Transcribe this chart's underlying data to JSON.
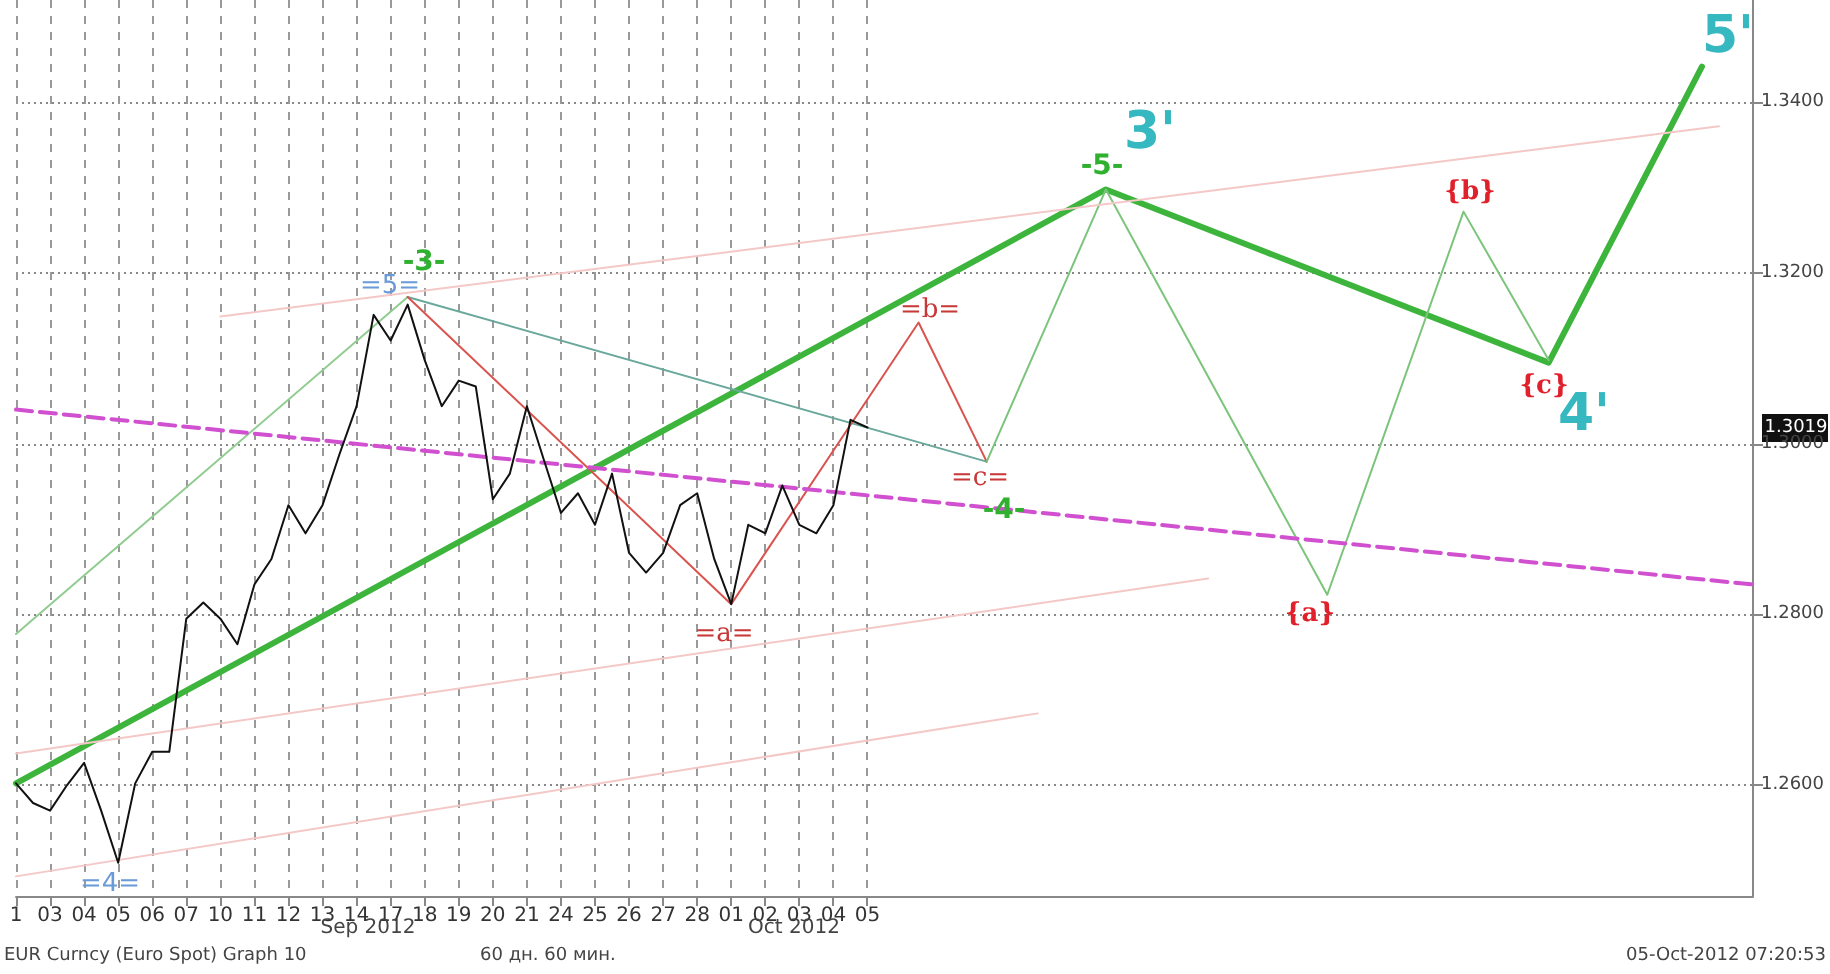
{
  "chart_data": {
    "type": "line",
    "categories": [
      "1",
      null,
      "03",
      null,
      "04",
      null,
      "05",
      null,
      "06",
      null,
      "07",
      null,
      "10",
      null,
      "11",
      null,
      "12",
      null,
      "13",
      null,
      "14",
      null,
      "17",
      null,
      "18",
      null,
      "19",
      null,
      "20",
      null,
      "21",
      null,
      "24",
      null,
      "25",
      null,
      "26",
      null,
      "27",
      null,
      "28",
      null,
      "01",
      null,
      "02",
      null,
      "03",
      null,
      "04",
      null,
      "05",
      null,
      null,
      null,
      null,
      null,
      null,
      null,
      null,
      null,
      null,
      null,
      null,
      null,
      null,
      null,
      null,
      null,
      null,
      null,
      null,
      null,
      null,
      null,
      null,
      null,
      null,
      null,
      null,
      null,
      null,
      null,
      null,
      null,
      null,
      null,
      null,
      null,
      null,
      null,
      null,
      null,
      null,
      null,
      null,
      null,
      null,
      null,
      null,
      null,
      null,
      null,
      null
    ],
    "ylim": [
      1.247,
      1.352
    ],
    "yticks": [
      {
        "value": 1.26,
        "label": "1.2600"
      },
      {
        "value": 1.28,
        "label": "1.2800"
      },
      {
        "value": 1.3,
        "label": "1.3000"
      },
      {
        "value": 1.32,
        "label": "1.3200"
      },
      {
        "value": 1.34,
        "label": "1.3400"
      }
    ],
    "grid": true,
    "marker": "none",
    "series": [
      {
        "color": "#111111",
        "values": [
          1.2602,
          1.2579,
          1.257,
          1.26,
          1.2626,
          1.257,
          1.2509,
          1.2602,
          1.2639,
          1.2639,
          1.2795,
          1.2814,
          1.2795,
          1.2765,
          1.2835,
          1.2865,
          1.2928,
          1.2895,
          1.2928,
          1.2988,
          1.3044,
          1.3151,
          1.3121,
          1.3163,
          1.3098,
          1.3044,
          1.3074,
          1.3067,
          1.2935,
          1.2965,
          1.3044,
          1.2981,
          1.2919,
          1.2942,
          1.2905,
          1.2965,
          1.2872,
          1.2849,
          1.2872,
          1.2928,
          1.2942,
          1.2865,
          1.2812,
          1.2905,
          1.2895,
          1.2951,
          1.2905,
          1.2895,
          1.2928,
          1.3028,
          1.3019,
          null,
          null,
          null,
          null,
          null,
          null,
          null,
          null,
          null,
          null,
          null,
          null,
          null,
          null,
          null,
          null,
          null,
          null,
          null,
          null,
          null,
          null,
          null,
          null,
          null,
          null,
          null,
          null,
          null,
          null,
          null,
          null,
          null,
          null,
          null,
          null,
          null,
          null,
          null,
          null,
          null,
          null,
          null,
          null,
          null,
          null,
          null,
          null,
          null,
          null,
          null,
          null
        ]
      },
      {
        "color": "#3db53d",
        "values": [
          1.2602,
          null,
          null,
          null,
          null,
          null,
          null,
          null,
          null,
          null,
          null,
          null,
          null,
          null,
          null,
          null,
          null,
          null,
          null,
          null,
          null,
          null,
          null,
          null,
          null,
          null,
          null,
          null,
          null,
          null,
          null,
          null,
          null,
          null,
          null,
          null,
          null,
          null,
          null,
          null,
          null,
          null,
          null,
          null,
          null,
          null,
          null,
          null,
          null,
          null,
          null,
          null,
          null,
          null,
          null,
          null,
          null,
          null,
          null,
          null,
          null,
          null,
          null,
          null,
          1.3298,
          null,
          null,
          null,
          null,
          null,
          null,
          null,
          null,
          null,
          null,
          null,
          null,
          null,
          null,
          null,
          null,
          null,
          null,
          null,
          null,
          null,
          null,
          null,
          null,
          null,
          1.3095,
          null,
          null,
          null,
          null,
          null,
          null,
          null,
          null,
          1.3442,
          null,
          null,
          null
        ]
      },
      {
        "color": "#90cc90",
        "values": [
          1.2777,
          null,
          null,
          null,
          null,
          null,
          null,
          null,
          null,
          null,
          null,
          null,
          null,
          null,
          null,
          null,
          null,
          null,
          null,
          null,
          null,
          null,
          null,
          1.3172,
          null,
          null,
          null,
          null,
          null,
          null,
          null,
          null,
          null,
          null,
          null,
          null,
          null,
          null,
          null,
          null,
          null,
          null,
          null,
          null,
          null,
          null,
          null,
          null,
          null,
          null,
          null,
          null,
          null,
          null,
          null,
          null,
          null,
          null,
          null,
          null,
          null,
          null,
          null,
          null,
          null,
          null,
          null,
          null,
          null,
          null,
          null,
          null,
          null,
          null,
          null,
          null,
          null,
          null,
          null,
          null,
          null,
          null,
          null,
          null,
          null,
          null,
          null,
          null,
          null,
          null,
          null,
          null,
          null,
          null,
          null,
          null,
          null,
          null,
          null,
          null,
          null,
          null,
          null
        ]
      },
      {
        "color": "#6aa89c",
        "values": [
          null,
          null,
          null,
          null,
          null,
          null,
          null,
          null,
          null,
          null,
          null,
          null,
          null,
          null,
          null,
          null,
          null,
          null,
          null,
          null,
          null,
          null,
          null,
          1.3172,
          null,
          null,
          null,
          null,
          null,
          null,
          null,
          null,
          null,
          null,
          null,
          null,
          null,
          null,
          null,
          null,
          null,
          null,
          null,
          null,
          null,
          null,
          null,
          null,
          null,
          null,
          null,
          null,
          null,
          null,
          null,
          null,
          null,
          1.2979,
          null,
          null,
          null,
          null,
          null,
          null,
          null,
          null,
          null,
          null,
          null,
          null,
          null,
          null,
          null,
          null,
          null,
          null,
          null,
          null,
          null,
          null,
          null,
          null,
          null,
          null,
          null,
          null,
          null,
          null,
          null,
          null,
          null,
          null,
          null,
          null,
          null,
          null,
          null,
          null,
          null,
          null,
          null,
          null,
          null
        ]
      },
      {
        "color": "#d9534f",
        "values": [
          null,
          null,
          null,
          null,
          null,
          null,
          null,
          null,
          null,
          null,
          null,
          null,
          null,
          null,
          null,
          null,
          null,
          null,
          null,
          null,
          null,
          null,
          null,
          1.3172,
          null,
          null,
          null,
          null,
          null,
          null,
          null,
          null,
          null,
          null,
          null,
          null,
          null,
          null,
          null,
          null,
          null,
          null,
          1.2812,
          null,
          null,
          null,
          null,
          null,
          null,
          null,
          null,
          null,
          null,
          1.3142,
          null,
          null,
          null,
          1.2979,
          null,
          null,
          null,
          null,
          null,
          null,
          null,
          null,
          null,
          null,
          null,
          null,
          null,
          null,
          null,
          null,
          null,
          null,
          null,
          null,
          null,
          null,
          null,
          null,
          null,
          null,
          null,
          null,
          null,
          null,
          null,
          null,
          null,
          null,
          null,
          null,
          null,
          null,
          null,
          null,
          null,
          null,
          null,
          null,
          null
        ]
      },
      {
        "color": "#7cc47c",
        "values": [
          null,
          null,
          null,
          null,
          null,
          null,
          null,
          null,
          null,
          null,
          null,
          null,
          null,
          null,
          null,
          null,
          null,
          null,
          null,
          null,
          null,
          null,
          null,
          null,
          null,
          null,
          null,
          null,
          null,
          null,
          null,
          null,
          null,
          null,
          null,
          null,
          null,
          null,
          null,
          null,
          null,
          null,
          null,
          null,
          null,
          null,
          null,
          null,
          null,
          null,
          null,
          null,
          null,
          null,
          null,
          null,
          null,
          1.2979,
          null,
          null,
          null,
          null,
          null,
          null,
          1.3298,
          null,
          null,
          null,
          null,
          null,
          null,
          null,
          null,
          null,
          null,
          null,
          null,
          1.2823,
          null,
          null,
          null,
          null,
          null,
          null,
          null,
          1.3272,
          null,
          null,
          null,
          null,
          1.3098,
          null,
          null,
          null,
          null,
          null,
          null,
          null,
          null,
          null,
          null,
          null,
          null
        ]
      },
      {
        "color": "#d050d0",
        "line_style": "dashed",
        "values": [
          1.304,
          null,
          null,
          null,
          null,
          null,
          null,
          null,
          null,
          null,
          null,
          null,
          null,
          null,
          null,
          null,
          null,
          null,
          null,
          null,
          null,
          null,
          null,
          null,
          null,
          null,
          null,
          null,
          null,
          null,
          null,
          null,
          null,
          null,
          null,
          null,
          null,
          null,
          null,
          null,
          null,
          null,
          null,
          null,
          null,
          null,
          null,
          null,
          null,
          null,
          null,
          null,
          null,
          null,
          null,
          null,
          null,
          null,
          null,
          null,
          null,
          null,
          null,
          null,
          null,
          null,
          null,
          null,
          null,
          null,
          null,
          null,
          null,
          null,
          null,
          null,
          null,
          null,
          null,
          null,
          null,
          null,
          null,
          null,
          null,
          null,
          null,
          null,
          null,
          null,
          null,
          null,
          null,
          null,
          null,
          null,
          null,
          null,
          null,
          null,
          null,
          null,
          1.2835
        ]
      },
      {
        "color": "#f5c8c8",
        "values": [
          null,
          null,
          null,
          null,
          null,
          null,
          null,
          null,
          null,
          null,
          null,
          null,
          1.3149,
          null,
          null,
          null,
          null,
          null,
          null,
          null,
          null,
          null,
          null,
          null,
          null,
          null,
          null,
          null,
          null,
          null,
          null,
          null,
          null,
          null,
          null,
          null,
          null,
          null,
          null,
          null,
          null,
          null,
          null,
          null,
          null,
          null,
          null,
          null,
          null,
          null,
          null,
          null,
          null,
          null,
          null,
          null,
          null,
          null,
          null,
          null,
          null,
          null,
          null,
          null,
          null,
          null,
          null,
          null,
          null,
          null,
          null,
          null,
          null,
          null,
          null,
          null,
          null,
          null,
          null,
          null,
          null,
          null,
          null,
          null,
          null,
          null,
          null,
          null,
          null,
          null,
          null,
          null,
          null,
          null,
          null,
          null,
          null,
          null,
          null,
          null,
          1.3372,
          null,
          null
        ]
      },
      {
        "color": "#f5c8c8",
        "values": [
          1.2637,
          null,
          null,
          null,
          null,
          null,
          null,
          null,
          null,
          null,
          null,
          null,
          null,
          null,
          null,
          null,
          null,
          null,
          null,
          null,
          null,
          null,
          null,
          null,
          null,
          null,
          null,
          null,
          null,
          null,
          null,
          null,
          null,
          null,
          null,
          null,
          null,
          null,
          null,
          null,
          null,
          null,
          null,
          null,
          null,
          null,
          null,
          null,
          null,
          null,
          null,
          null,
          null,
          null,
          null,
          null,
          null,
          null,
          null,
          null,
          null,
          null,
          null,
          null,
          null,
          null,
          null,
          null,
          null,
          null,
          1.2842,
          null,
          null,
          null,
          null,
          null,
          null,
          null,
          null,
          null,
          null,
          null,
          null,
          null,
          null,
          null,
          null,
          null,
          null,
          null,
          null,
          null,
          null,
          null,
          null,
          null,
          null,
          null,
          null,
          null,
          null,
          null,
          null
        ]
      },
      {
        "color": "#f5c8c8",
        "values": [
          1.2493,
          null,
          null,
          null,
          null,
          null,
          null,
          null,
          null,
          null,
          null,
          null,
          null,
          null,
          null,
          null,
          null,
          null,
          null,
          null,
          null,
          null,
          null,
          null,
          null,
          null,
          null,
          null,
          null,
          null,
          null,
          null,
          null,
          null,
          null,
          null,
          null,
          null,
          null,
          null,
          null,
          null,
          null,
          null,
          null,
          null,
          null,
          null,
          null,
          null,
          null,
          null,
          null,
          null,
          null,
          null,
          null,
          null,
          null,
          null,
          1.2684,
          null,
          null,
          null,
          null,
          null,
          null,
          null,
          null,
          null,
          null,
          null,
          null,
          null,
          null,
          null,
          null,
          null,
          null,
          null,
          null,
          null,
          null,
          null,
          null,
          null,
          null,
          null,
          null,
          null,
          null,
          null,
          null,
          null,
          null,
          null,
          null,
          null,
          null,
          null,
          null,
          null,
          null
        ]
      }
    ],
    "annotations": [
      "EUR Curncy (Euro Spot) Graph 10",
      "60 дн. 60 мин.",
      "05-Oct-2012 07:20:53",
      "Sep 2012",
      "Oct 2012",
      "=4=",
      "=5=",
      "-3-",
      "=a=",
      "=b=",
      "=c=",
      "-4-",
      "-5-",
      "3'",
      "{a}",
      "{b}",
      "{c}",
      "4'",
      "5'",
      "1.3019"
    ]
  }
}
